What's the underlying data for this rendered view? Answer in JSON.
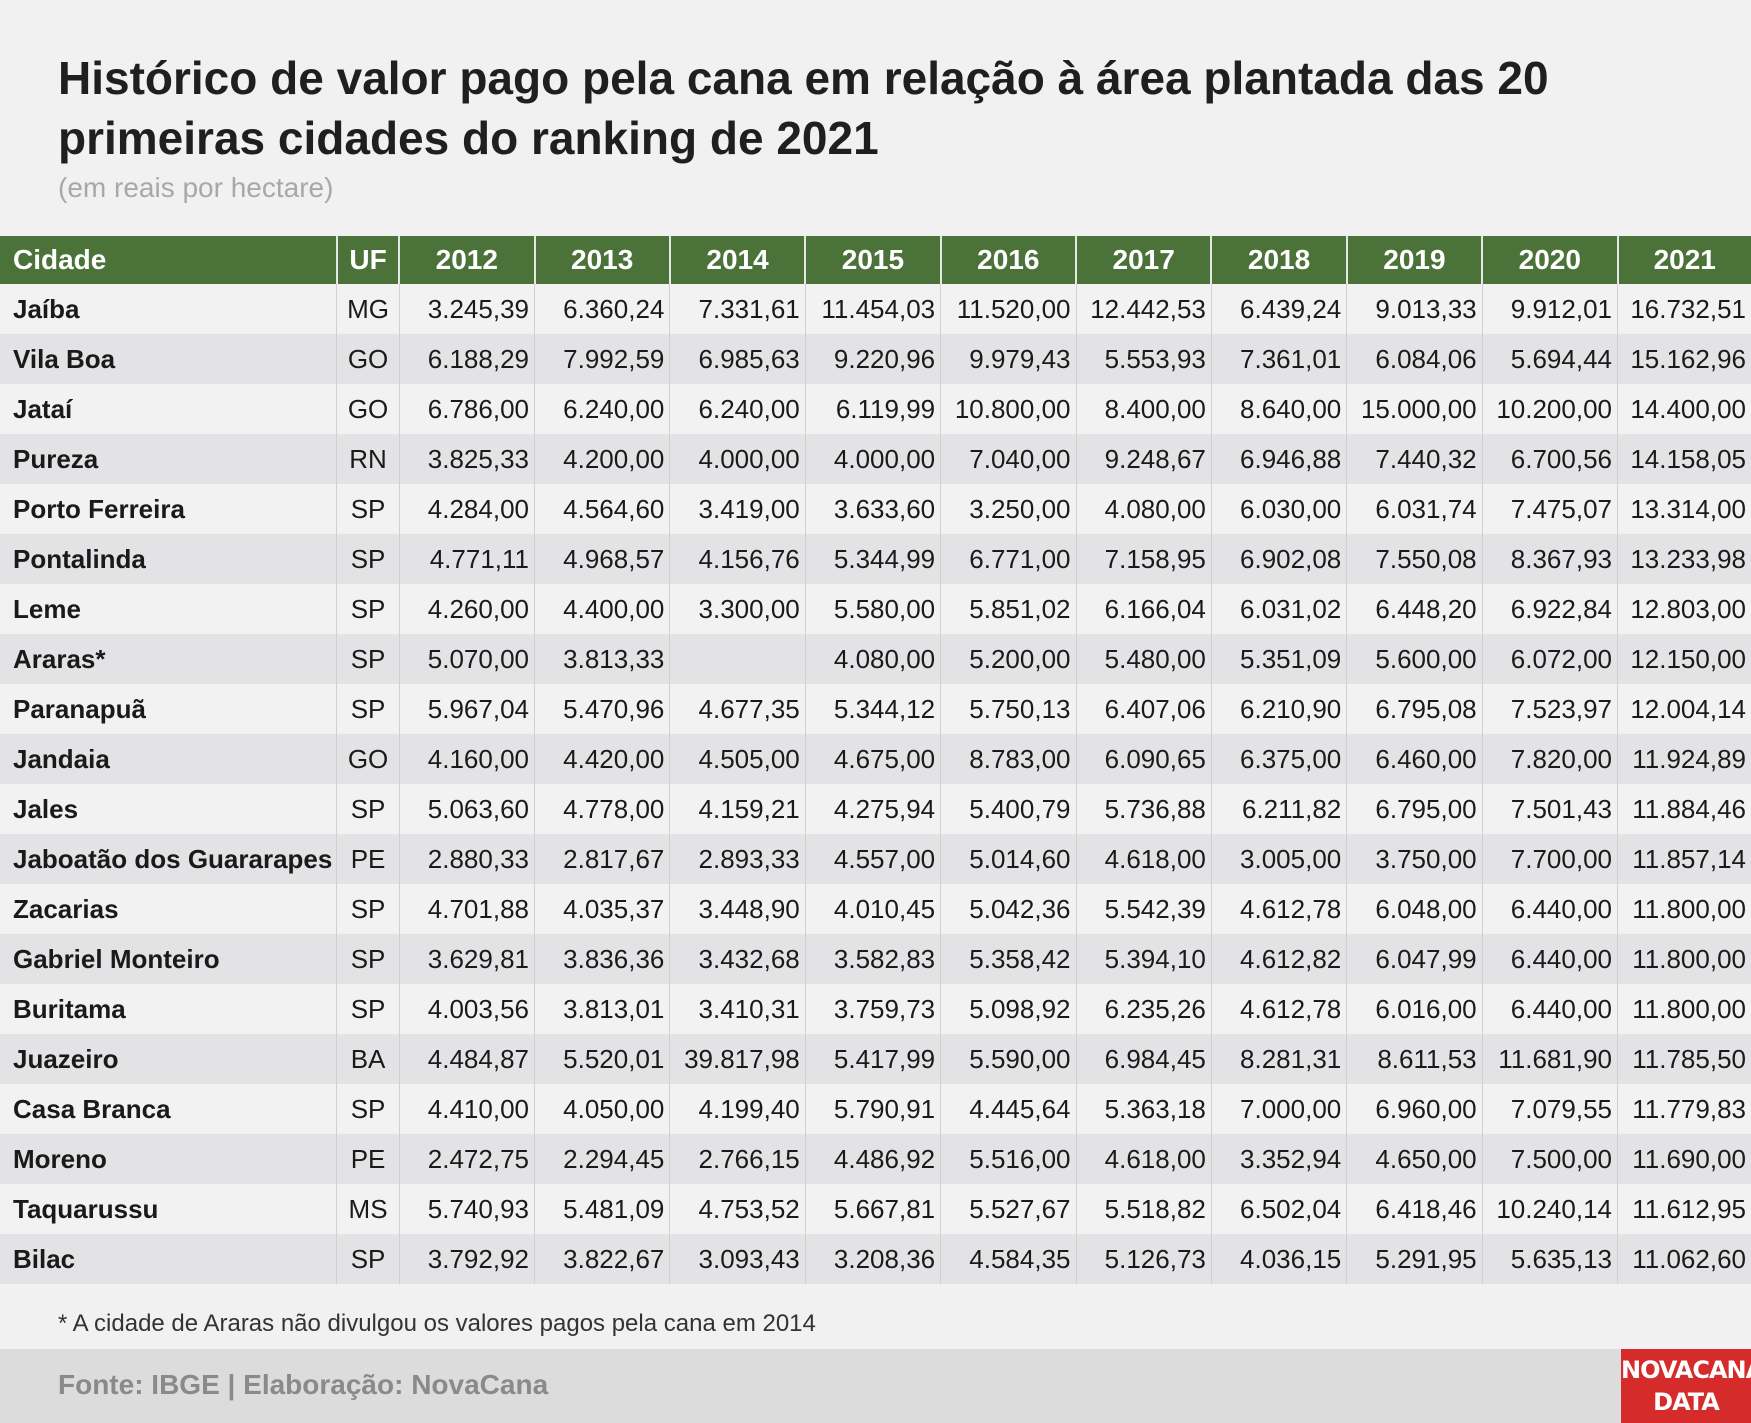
{
  "title": "Histórico de valor pago pela cana em relação à área plantada das 20 primeiras cidades do ranking de 2021",
  "subtitle": "(em reais por hectare)",
  "table": {
    "headers": [
      "Cidade",
      "UF",
      "2012",
      "2013",
      "2014",
      "2015",
      "2016",
      "2017",
      "2018",
      "2019",
      "2020",
      "2021"
    ],
    "rows": [
      [
        "Jaíba",
        "MG",
        "3.245,39",
        "6.360,24",
        "7.331,61",
        "11.454,03",
        "11.520,00",
        "12.442,53",
        "6.439,24",
        "9.013,33",
        "9.912,01",
        "16.732,51"
      ],
      [
        "Vila Boa",
        "GO",
        "6.188,29",
        "7.992,59",
        "6.985,63",
        "9.220,96",
        "9.979,43",
        "5.553,93",
        "7.361,01",
        "6.084,06",
        "5.694,44",
        "15.162,96"
      ],
      [
        "Jataí",
        "GO",
        "6.786,00",
        "6.240,00",
        "6.240,00",
        "6.119,99",
        "10.800,00",
        "8.400,00",
        "8.640,00",
        "15.000,00",
        "10.200,00",
        "14.400,00"
      ],
      [
        "Pureza",
        "RN",
        "3.825,33",
        "4.200,00",
        "4.000,00",
        "4.000,00",
        "7.040,00",
        "9.248,67",
        "6.946,88",
        "7.440,32",
        "6.700,56",
        "14.158,05"
      ],
      [
        "Porto Ferreira",
        "SP",
        "4.284,00",
        "4.564,60",
        "3.419,00",
        "3.633,60",
        "3.250,00",
        "4.080,00",
        "6.030,00",
        "6.031,74",
        "7.475,07",
        "13.314,00"
      ],
      [
        "Pontalinda",
        "SP",
        "4.771,11",
        "4.968,57",
        "4.156,76",
        "5.344,99",
        "6.771,00",
        "7.158,95",
        "6.902,08",
        "7.550,08",
        "8.367,93",
        "13.233,98"
      ],
      [
        "Leme",
        "SP",
        "4.260,00",
        "4.400,00",
        "3.300,00",
        "5.580,00",
        "5.851,02",
        "6.166,04",
        "6.031,02",
        "6.448,20",
        "6.922,84",
        "12.803,00"
      ],
      [
        "Araras*",
        "SP",
        "5.070,00",
        "3.813,33",
        "",
        "4.080,00",
        "5.200,00",
        "5.480,00",
        "5.351,09",
        "5.600,00",
        "6.072,00",
        "12.150,00"
      ],
      [
        "Paranapuã",
        "SP",
        "5.967,04",
        "5.470,96",
        "4.677,35",
        "5.344,12",
        "5.750,13",
        "6.407,06",
        "6.210,90",
        "6.795,08",
        "7.523,97",
        "12.004,14"
      ],
      [
        "Jandaia",
        "GO",
        "4.160,00",
        "4.420,00",
        "4.505,00",
        "4.675,00",
        "8.783,00",
        "6.090,65",
        "6.375,00",
        "6.460,00",
        "7.820,00",
        "11.924,89"
      ],
      [
        "Jales",
        "SP",
        "5.063,60",
        "4.778,00",
        "4.159,21",
        "4.275,94",
        "5.400,79",
        "5.736,88",
        "6.211,82",
        "6.795,00",
        "7.501,43",
        "11.884,46"
      ],
      [
        "Jaboatão dos Guararapes",
        "PE",
        "2.880,33",
        "2.817,67",
        "2.893,33",
        "4.557,00",
        "5.014,60",
        "4.618,00",
        "3.005,00",
        "3.750,00",
        "7.700,00",
        "11.857,14"
      ],
      [
        "Zacarias",
        "SP",
        "4.701,88",
        "4.035,37",
        "3.448,90",
        "4.010,45",
        "5.042,36",
        "5.542,39",
        "4.612,78",
        "6.048,00",
        "6.440,00",
        "11.800,00"
      ],
      [
        "Gabriel Monteiro",
        "SP",
        "3.629,81",
        "3.836,36",
        "3.432,68",
        "3.582,83",
        "5.358,42",
        "5.394,10",
        "4.612,82",
        "6.047,99",
        "6.440,00",
        "11.800,00"
      ],
      [
        "Buritama",
        "SP",
        "4.003,56",
        "3.813,01",
        "3.410,31",
        "3.759,73",
        "5.098,92",
        "6.235,26",
        "4.612,78",
        "6.016,00",
        "6.440,00",
        "11.800,00"
      ],
      [
        "Juazeiro",
        "BA",
        "4.484,87",
        "5.520,01",
        "39.817,98",
        "5.417,99",
        "5.590,00",
        "6.984,45",
        "8.281,31",
        "8.611,53",
        "11.681,90",
        "11.785,50"
      ],
      [
        "Casa Branca",
        "SP",
        "4.410,00",
        "4.050,00",
        "4.199,40",
        "5.790,91",
        "4.445,64",
        "5.363,18",
        "7.000,00",
        "6.960,00",
        "7.079,55",
        "11.779,83"
      ],
      [
        "Moreno",
        "PE",
        "2.472,75",
        "2.294,45",
        "2.766,15",
        "4.486,92",
        "5.516,00",
        "4.618,00",
        "3.352,94",
        "4.650,00",
        "7.500,00",
        "11.690,00"
      ],
      [
        "Taquarussu",
        "MS",
        "5.740,93",
        "5.481,09",
        "4.753,52",
        "5.667,81",
        "5.527,67",
        "5.518,82",
        "6.502,04",
        "6.418,46",
        "10.240,14",
        "11.612,95"
      ],
      [
        "Bilac",
        "SP",
        "3.792,92",
        "3.822,67",
        "3.093,43",
        "3.208,36",
        "4.584,35",
        "5.126,73",
        "4.036,15",
        "5.291,95",
        "5.635,13",
        "11.062,60"
      ]
    ]
  },
  "footnote": "* A cidade de Araras não divulgou os valores pagos pela cana em 2014",
  "source": "Fonte: IBGE | Elaboração: NovaCana",
  "logo": {
    "line1": "NOVACANA",
    "line2": "DATA"
  }
}
